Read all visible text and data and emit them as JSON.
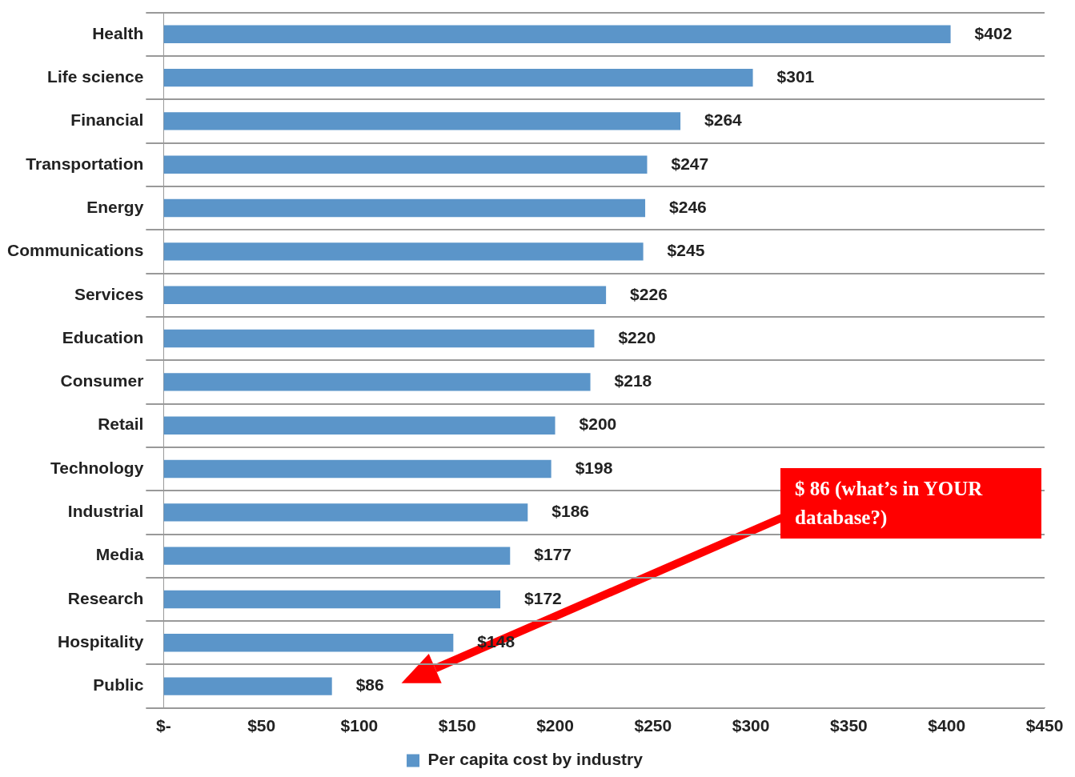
{
  "chart_data": {
    "type": "bar",
    "orientation": "horizontal",
    "categories": [
      "Health",
      "Life science",
      "Financial",
      "Transportation",
      "Energy",
      "Communications",
      "Services",
      "Education",
      "Consumer",
      "Retail",
      "Technology",
      "Industrial",
      "Media",
      "Research",
      "Hospitality",
      "Public"
    ],
    "series": [
      {
        "name": "Per capita cost by industry",
        "color": "#5b95c9",
        "values": [
          402,
          301,
          264,
          247,
          246,
          245,
          226,
          220,
          218,
          200,
          198,
          186,
          177,
          172,
          148,
          86
        ],
        "value_labels": [
          "$402",
          "$301",
          "$264",
          "$247",
          "$246",
          "$245",
          "$226",
          "$220",
          "$218",
          "$200",
          "$198",
          "$186",
          "$177",
          "$172",
          "$148",
          "$86"
        ]
      }
    ],
    "xlim": [
      0,
      450
    ],
    "xticks": [
      {
        "value": 0,
        "label": "$-"
      },
      {
        "value": 50,
        "label": "$50"
      },
      {
        "value": 100,
        "label": "$100"
      },
      {
        "value": 150,
        "label": "$150"
      },
      {
        "value": 200,
        "label": "$200"
      },
      {
        "value": 250,
        "label": "$250"
      },
      {
        "value": 300,
        "label": "$300"
      },
      {
        "value": 350,
        "label": "$350"
      },
      {
        "value": 400,
        "label": "$400"
      },
      {
        "value": 450,
        "label": "$450"
      }
    ],
    "grid": "y",
    "legend": "bottom",
    "annotations": [
      "$ 86 (what’s in YOUR database?)"
    ]
  }
}
